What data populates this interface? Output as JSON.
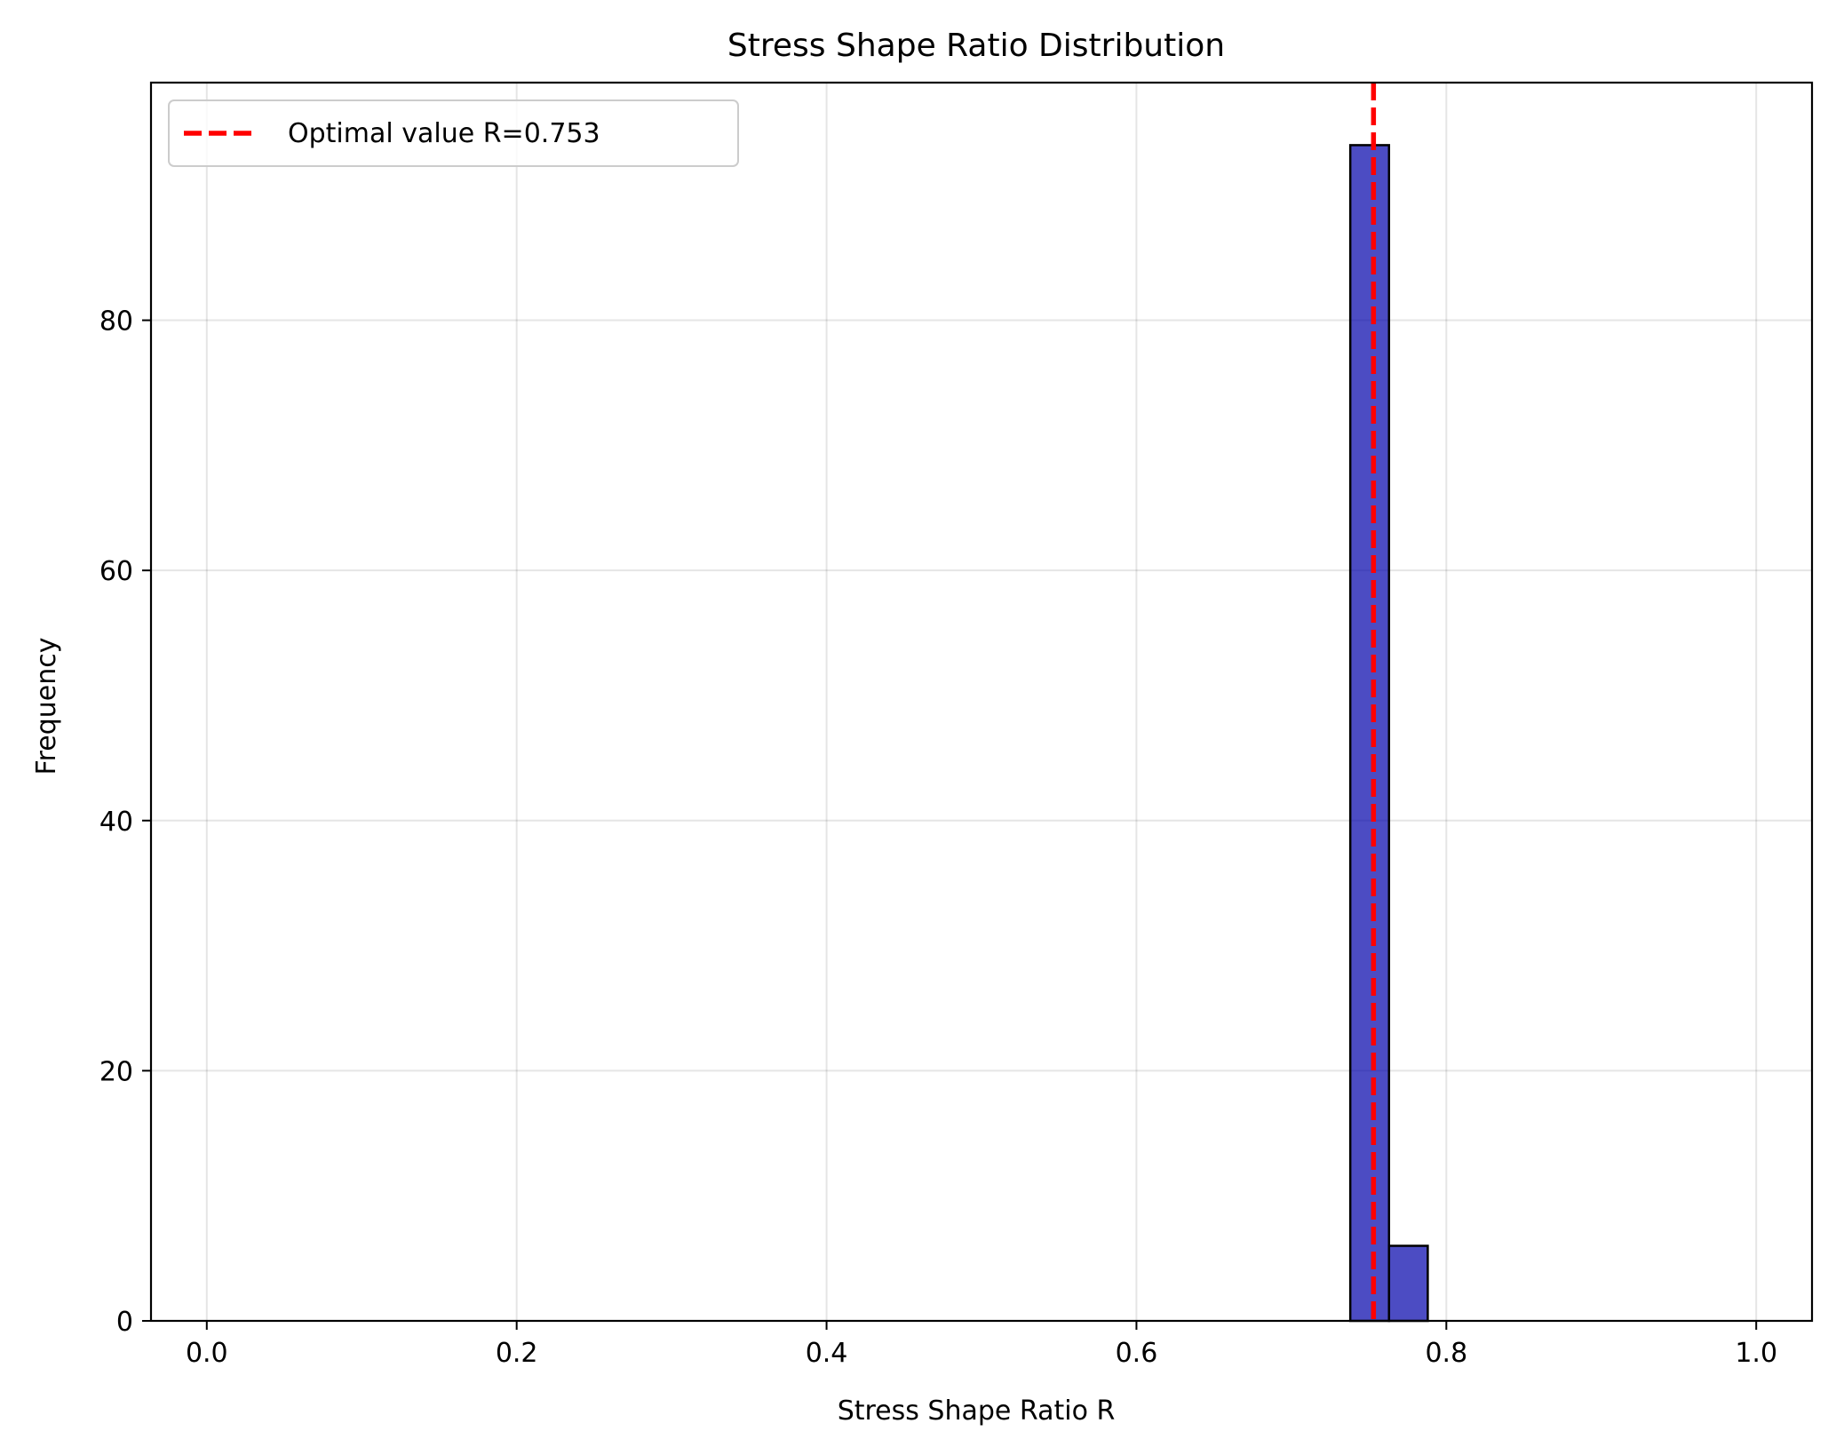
{
  "chart_data": {
    "type": "bar",
    "title": "Stress Shape Ratio Distribution",
    "xlabel": "Stress Shape Ratio R",
    "ylabel": "Frequency",
    "xlim": [
      -0.036,
      1.036
    ],
    "ylim": [
      0,
      99
    ],
    "xticks": [
      0.0,
      0.2,
      0.4,
      0.6,
      0.8,
      1.0
    ],
    "xtick_labels": [
      "0.0",
      "0.2",
      "0.4",
      "0.6",
      "0.8",
      "1.0"
    ],
    "yticks": [
      0,
      20,
      40,
      60,
      80
    ],
    "ytick_labels": [
      "0",
      "20",
      "40",
      "60",
      "80"
    ],
    "grid": true,
    "bins": [
      {
        "x0": 0.738,
        "x1": 0.763,
        "value": 94
      },
      {
        "x0": 0.763,
        "x1": 0.788,
        "value": 6
      }
    ],
    "baseline": {
      "x0": 0.012,
      "x1": 0.987,
      "value": 0
    },
    "bar_color": "#0000aa",
    "bar_edge_color": "#000000",
    "reference_line": {
      "x": 0.753,
      "label": "Optimal value R=0.753",
      "color": "#ff0000",
      "style": "dashed"
    },
    "legend": {
      "placement": "top-left",
      "entries": [
        "Optimal value R=0.753"
      ]
    }
  }
}
